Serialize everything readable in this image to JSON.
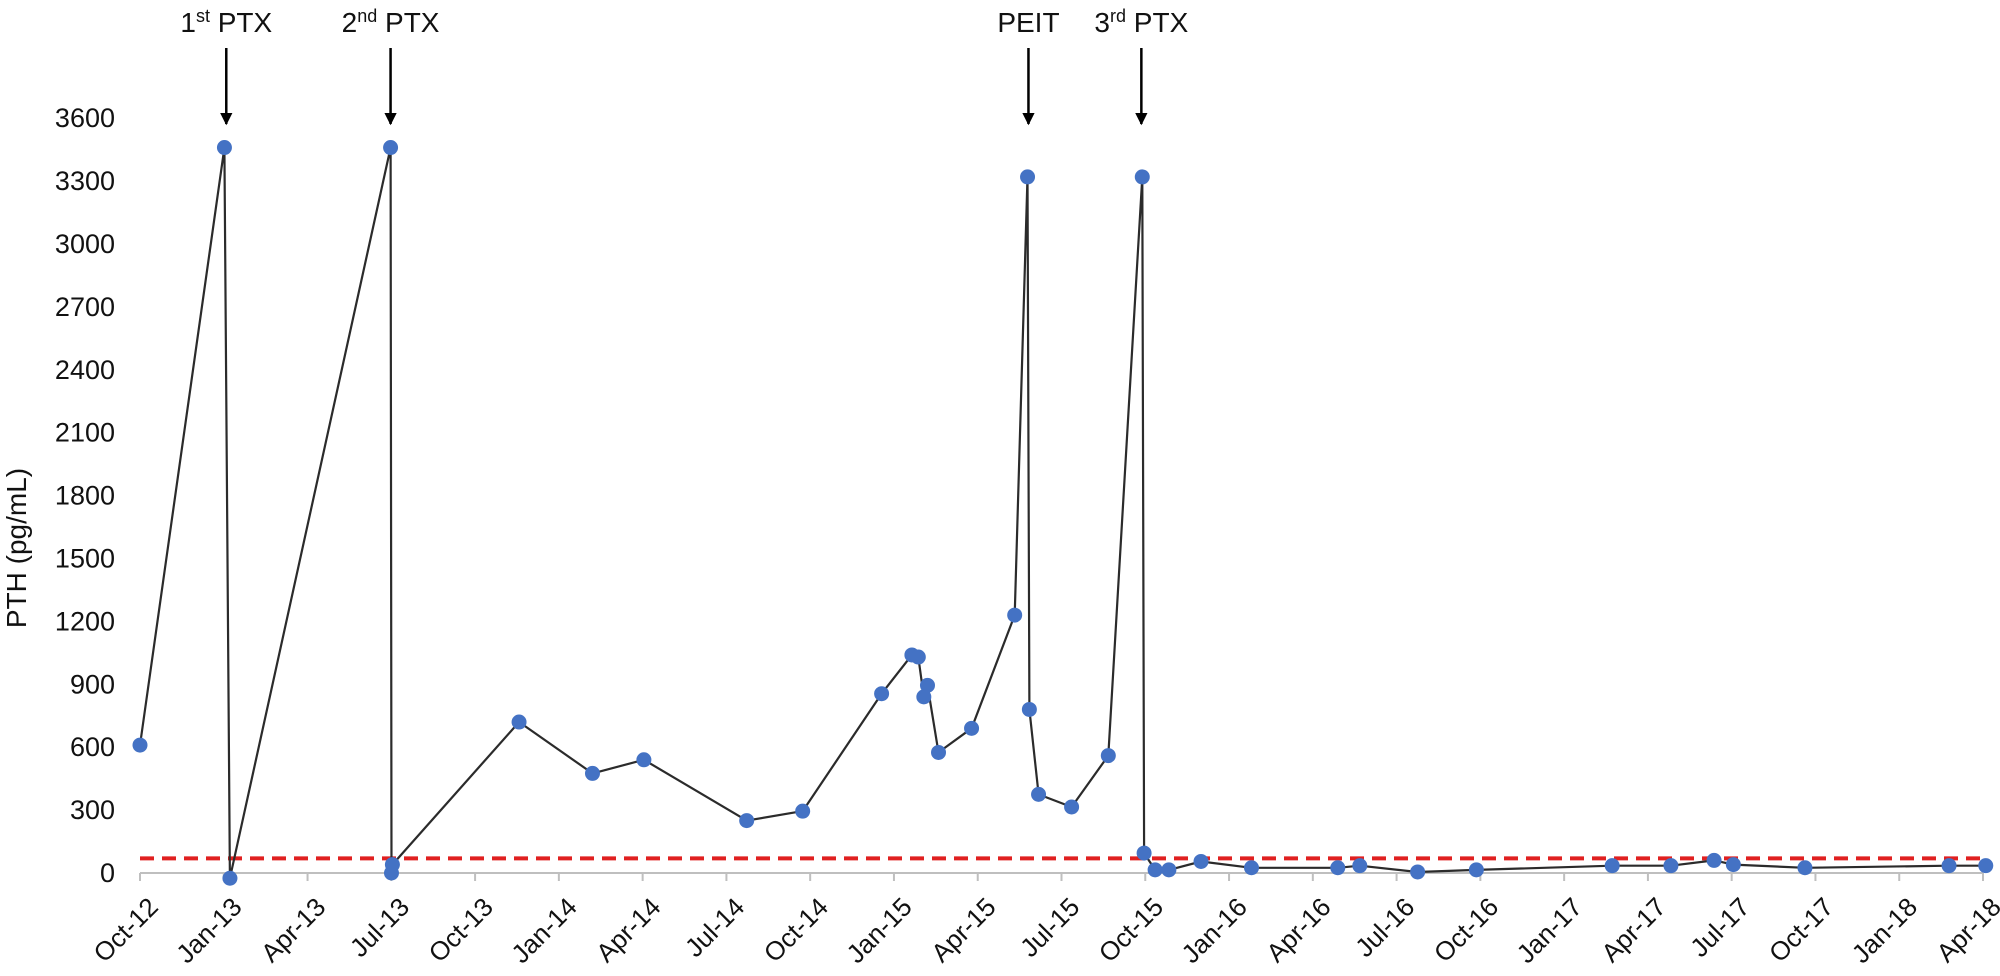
{
  "chart_data": {
    "type": "line",
    "title": "",
    "xlabel": "",
    "ylabel": "PTH (pg/mL)",
    "ylim": [
      0,
      3600
    ],
    "y_ticks": [
      0,
      300,
      600,
      900,
      1200,
      1500,
      1800,
      2100,
      2400,
      2700,
      3000,
      3300,
      3600
    ],
    "x_tick_labels": [
      "Oct-12",
      "Jan-13",
      "Apr-13",
      "Jul-13",
      "Oct-13",
      "Jan-14",
      "Apr-14",
      "Jul-14",
      "Oct-14",
      "Jan-15",
      "Apr-15",
      "Jul-15",
      "Oct-15",
      "Jan-16",
      "Apr-16",
      "Jul-16",
      "Oct-16",
      "Jan-17",
      "Apr-17",
      "Jul-17",
      "Oct-17",
      "Jan-18",
      "Apr-18"
    ],
    "x_range": [
      "2012-10-01",
      "2018-04-01"
    ],
    "grid": false,
    "legend": "none",
    "line_color": "#2b2b2b",
    "marker_color": "#4472c4",
    "reference_line": {
      "value": 70,
      "color": "#e02020",
      "style": "dashed"
    },
    "annotations": [
      {
        "base": "1",
        "sup": "st",
        "rest": " PTX",
        "date": "2013-01-03"
      },
      {
        "base": "2",
        "sup": "nd",
        "rest": " PTX",
        "date": "2013-07-01"
      },
      {
        "base": "PEIT",
        "sup": "",
        "rest": "",
        "date": "2015-05-27"
      },
      {
        "base": "3",
        "sup": "rd",
        "rest": " PTX",
        "date": "2015-09-27"
      }
    ],
    "series": [
      {
        "points": [
          {
            "x": "2012-10-01",
            "y": 610
          },
          {
            "x": "2013-01-01",
            "y": 3460
          },
          {
            "x": "2013-01-07",
            "y": -25
          },
          {
            "x": "2013-07-01",
            "y": 3460
          },
          {
            "x": "2013-07-02",
            "y": 0
          },
          {
            "x": "2013-07-03",
            "y": 40
          },
          {
            "x": "2013-11-18",
            "y": 720
          },
          {
            "x": "2014-02-06",
            "y": 475
          },
          {
            "x": "2014-04-03",
            "y": 540
          },
          {
            "x": "2014-07-24",
            "y": 250
          },
          {
            "x": "2014-09-23",
            "y": 295
          },
          {
            "x": "2014-12-18",
            "y": 855
          },
          {
            "x": "2015-01-20",
            "y": 1040
          },
          {
            "x": "2015-01-27",
            "y": 1030
          },
          {
            "x": "2015-02-02",
            "y": 840
          },
          {
            "x": "2015-02-06",
            "y": 895
          },
          {
            "x": "2015-02-18",
            "y": 575
          },
          {
            "x": "2015-03-26",
            "y": 690
          },
          {
            "x": "2015-05-12",
            "y": 1230
          },
          {
            "x": "2015-05-26",
            "y": 3320
          },
          {
            "x": "2015-05-28",
            "y": 780
          },
          {
            "x": "2015-06-07",
            "y": 375
          },
          {
            "x": "2015-07-13",
            "y": 315
          },
          {
            "x": "2015-08-22",
            "y": 560
          },
          {
            "x": "2015-09-28",
            "y": 3320
          },
          {
            "x": "2015-09-30",
            "y": 95
          },
          {
            "x": "2015-10-12",
            "y": 15
          },
          {
            "x": "2015-10-27",
            "y": 15
          },
          {
            "x": "2015-12-01",
            "y": 55
          },
          {
            "x": "2016-01-25",
            "y": 25
          },
          {
            "x": "2016-04-28",
            "y": 25
          },
          {
            "x": "2016-05-22",
            "y": 35
          },
          {
            "x": "2016-07-24",
            "y": 5
          },
          {
            "x": "2016-09-26",
            "y": 15
          },
          {
            "x": "2017-02-21",
            "y": 35
          },
          {
            "x": "2017-04-26",
            "y": 35
          },
          {
            "x": "2017-06-12",
            "y": 60
          },
          {
            "x": "2017-07-03",
            "y": 40
          },
          {
            "x": "2017-09-19",
            "y": 25
          },
          {
            "x": "2018-02-23",
            "y": 35
          },
          {
            "x": "2018-04-04",
            "y": 35
          }
        ]
      }
    ]
  }
}
